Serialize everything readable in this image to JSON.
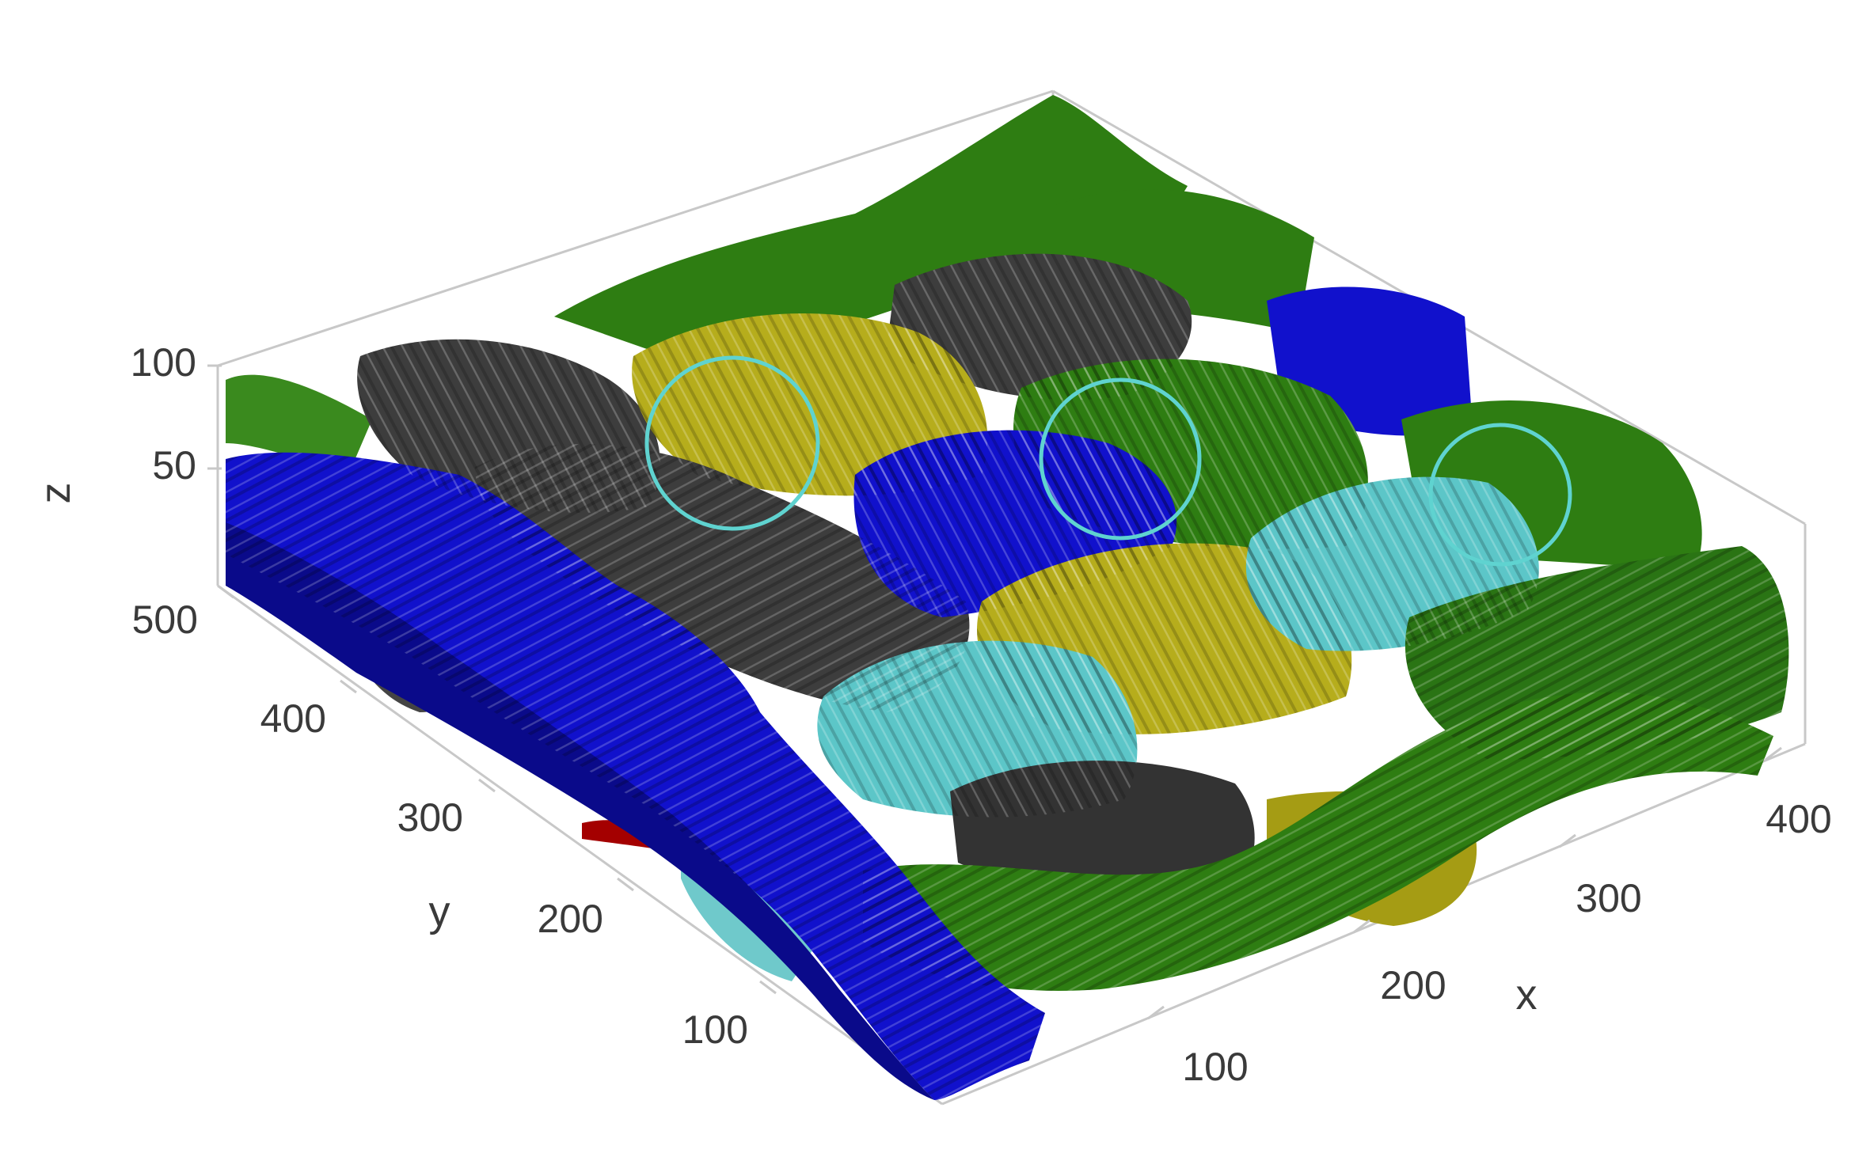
{
  "figure": {
    "axes": {
      "x": {
        "label": "x",
        "ticks": [
          "100",
          "200",
          "300",
          "400"
        ]
      },
      "y": {
        "label": "y",
        "ticks": [
          "100",
          "200",
          "300",
          "400",
          "500"
        ]
      },
      "z": {
        "label": "z",
        "ticks": [
          "50",
          "100"
        ]
      }
    },
    "colors": {
      "green": "#2e7d12",
      "dark_green": "#1e5c0a",
      "blue": "#1111cc",
      "dark_blue": "#0a0a8a",
      "gray": "#3d3d3d",
      "yellow": "#b6ad1c",
      "cyan": "#5cc6c8",
      "red": "#a40000",
      "circle": "#5fd3d0",
      "box_line": "#c8c8c8"
    },
    "highlight_circles": 3
  }
}
